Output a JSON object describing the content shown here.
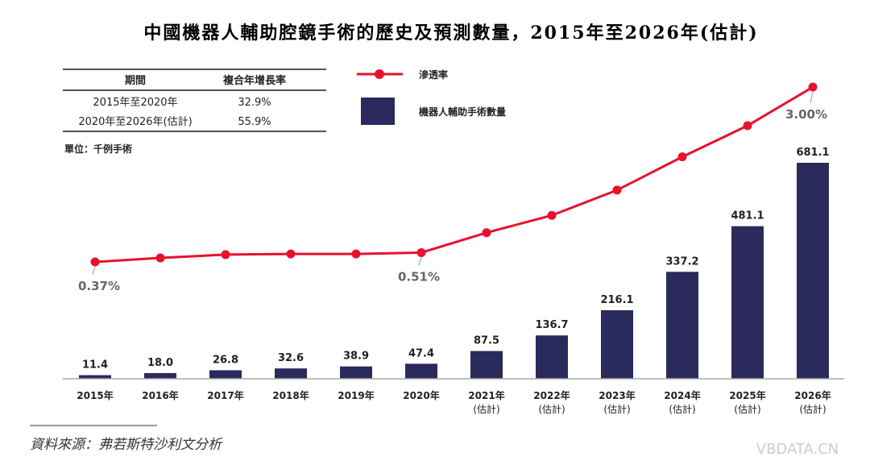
{
  "chart_data": {
    "type": "bar+line",
    "title": "中國機器人輔助腔鏡手術的歷史及預測數量，2015年至2026年(估計)",
    "categories": [
      "2015年",
      "2016年",
      "2017年",
      "2018年",
      "2019年",
      "2020年",
      "2021年",
      "2022年",
      "2023年",
      "2024年",
      "2025年",
      "2026年"
    ],
    "category_sublabels": [
      "",
      "",
      "",
      "",
      "",
      "",
      "(估計)",
      "(估計)",
      "(估計)",
      "(估計)",
      "(估計)",
      "(估計)"
    ],
    "unit_label": "單位：千例手術",
    "series": [
      {
        "name": "機器人輔助手術數量",
        "type": "bar",
        "color": "#2b2a5c",
        "values": [
          11.4,
          18.0,
          26.8,
          32.6,
          38.9,
          47.4,
          87.5,
          136.7,
          216.1,
          337.2,
          481.1,
          681.1
        ],
        "labels": [
          "11.4",
          "18.0",
          "26.8",
          "32.6",
          "38.9",
          "47.4",
          "87.5",
          "136.7",
          "216.1",
          "337.2",
          "481.1",
          "681.1"
        ]
      },
      {
        "name": "滲透率",
        "type": "line",
        "color": "#e8112d",
        "values": [
          0.37,
          0.43,
          0.48,
          0.49,
          0.49,
          0.51,
          0.81,
          1.07,
          1.45,
          1.95,
          2.42,
          3.0
        ],
        "point_labels": {
          "0": "0.37%",
          "5": "0.51%",
          "11": "3.00%"
        }
      }
    ],
    "cagr_table": {
      "headers": [
        "期間",
        "複合年增長率"
      ],
      "rows": [
        [
          "2015年至2020年",
          "32.9%"
        ],
        [
          "2020年至2026年(估計)",
          "55.9%"
        ]
      ]
    },
    "legend_placement": "top-center",
    "grid": false
  },
  "source": "資料來源：弗若斯特沙利文分析",
  "watermark": "VBDATA.CN"
}
